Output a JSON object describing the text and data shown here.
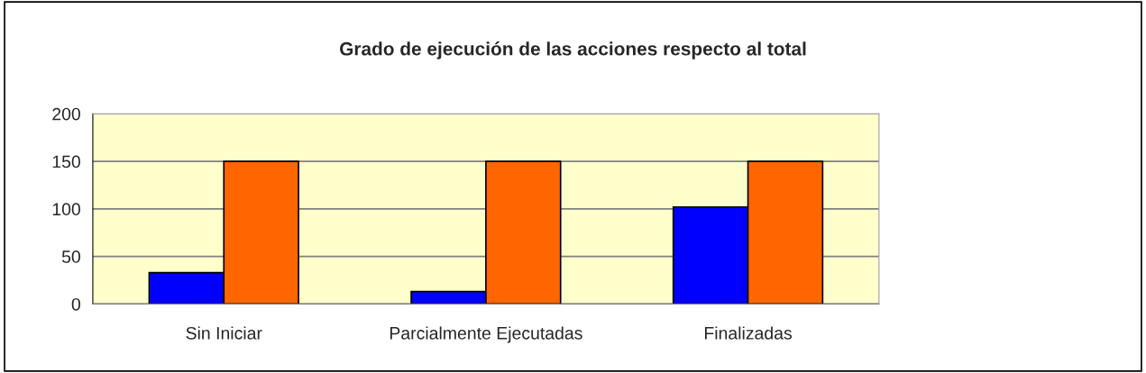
{
  "chart_data": {
    "type": "bar",
    "title": "Grado de ejecución de las acciones respecto al total",
    "categories": [
      "Sin Iniciar",
      "Parcialmente Ejecutadas",
      "Finalizadas"
    ],
    "series": [
      {
        "color": "#0000ff",
        "values": [
          33,
          13,
          102
        ]
      },
      {
        "color": "#ff6600",
        "values": [
          150,
          150,
          150
        ]
      }
    ],
    "ylim": [
      0,
      200
    ],
    "yticks": [
      0,
      50,
      100,
      150,
      200
    ],
    "grid": "y",
    "legend": false
  }
}
